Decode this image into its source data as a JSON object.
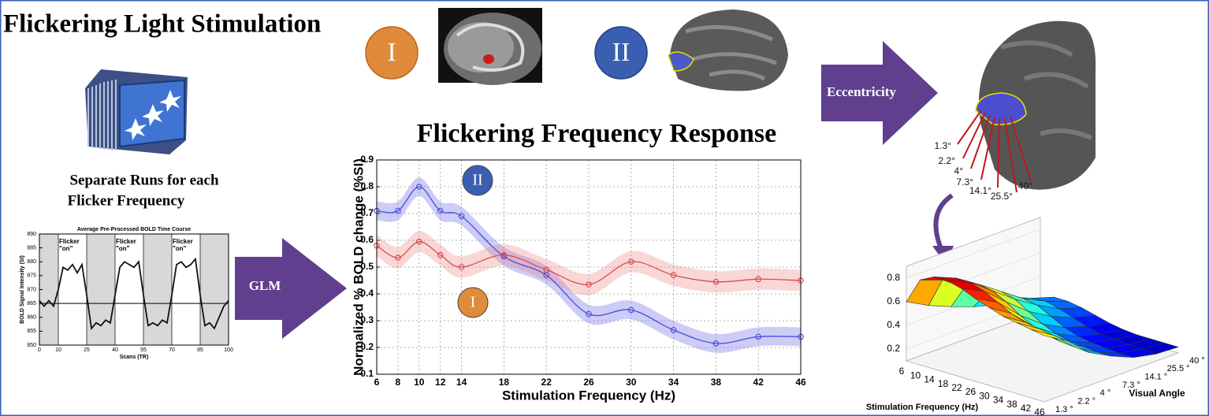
{
  "header": {
    "title": "Flickering Light Stimulation"
  },
  "stimulus_text": [
    "Separate Runs for each",
    "Flicker Frequency"
  ],
  "region_labels": [
    "I",
    "II"
  ],
  "arrows": [
    "GLM",
    "Eccentricity"
  ],
  "eccentricity_labels": [
    "1.3°",
    "2.2°",
    "4°",
    "7.3°",
    "14.1°",
    "25.5°",
    "40°"
  ],
  "chart_data": [
    {
      "type": "line",
      "title": "Flickering Frequency Response",
      "xlabel": "Stimulation Frequency (Hz)",
      "ylabel": "Normalized % BOLD change (%SI)",
      "x": [
        6,
        8,
        10,
        12,
        14,
        18,
        22,
        26,
        30,
        34,
        38,
        42,
        46
      ],
      "series": [
        {
          "name": "II",
          "color": "#4a4fd8",
          "band_color": "rgba(120,120,235,0.38)",
          "values": [
            0.71,
            0.71,
            0.8,
            0.71,
            0.69,
            0.54,
            0.47,
            0.325,
            0.34,
            0.265,
            0.215,
            0.24,
            0.24
          ],
          "errors": [
            0.035,
            0.035,
            0.035,
            0.035,
            0.035,
            0.035,
            0.035,
            0.035,
            0.035,
            0.035,
            0.035,
            0.035,
            0.035
          ]
        },
        {
          "name": "I",
          "color": "#e04a4a",
          "band_color": "rgba(235,130,130,0.32)",
          "values": [
            0.58,
            0.535,
            0.595,
            0.545,
            0.5,
            0.545,
            0.49,
            0.435,
            0.52,
            0.47,
            0.445,
            0.455,
            0.45
          ],
          "errors": [
            0.04,
            0.04,
            0.04,
            0.04,
            0.04,
            0.04,
            0.04,
            0.04,
            0.04,
            0.04,
            0.04,
            0.04,
            0.04
          ]
        }
      ],
      "annotations": [
        "II",
        "I"
      ],
      "xlim": [
        6,
        46
      ],
      "ylim": [
        0.1,
        0.9
      ],
      "xticks": [
        6,
        8,
        10,
        12,
        14,
        18,
        22,
        26,
        30,
        34,
        38,
        42,
        46
      ],
      "yticks": [
        0.1,
        0.2,
        0.3,
        0.4,
        0.5,
        0.6,
        0.7,
        0.8,
        0.9
      ],
      "grid": true
    },
    {
      "type": "line",
      "title": "Average Pre-Processed BOLD Time Course",
      "xlabel": "Scans (TR)",
      "ylabel": "BOLD Signal Intensity (SI)",
      "x": [
        0,
        2.5,
        5,
        7.5,
        10,
        12.5,
        15,
        17.5,
        20,
        22.5,
        25,
        27.5,
        30,
        32.5,
        35,
        37.5,
        40,
        42.5,
        45,
        47.5,
        50,
        52.5,
        55,
        57.5,
        60,
        62.5,
        65,
        67.5,
        70,
        72.5,
        75,
        77.5,
        80,
        82.5,
        85,
        87.5,
        90,
        92.5,
        95,
        97.5,
        100
      ],
      "values": [
        866,
        864,
        866,
        864,
        870,
        878,
        877,
        879,
        876,
        879,
        868,
        856,
        858,
        857,
        859,
        858,
        868,
        878,
        880,
        879,
        878,
        880,
        868,
        857,
        858,
        857,
        859,
        858,
        868,
        879,
        880,
        878,
        879,
        881,
        868,
        857,
        858,
        856,
        860,
        864,
        866
      ],
      "color": "#111111",
      "reference_line": 865,
      "off_blocks": [
        [
          0,
          10
        ],
        [
          25,
          40
        ],
        [
          55,
          70
        ],
        [
          85,
          100
        ]
      ],
      "annotations": [
        [
          "Flicker",
          "\"on\""
        ],
        [
          "Flicker",
          "\"on\""
        ],
        [
          "Flicker",
          "\"on\""
        ]
      ],
      "xlim": [
        0,
        100
      ],
      "ylim": [
        850,
        890
      ],
      "xticks": [
        0,
        10,
        25,
        40,
        55,
        70,
        85,
        100
      ],
      "yticks": [
        850,
        855,
        860,
        865,
        870,
        875,
        880,
        885,
        890
      ]
    },
    {
      "type": "surface",
      "xlabel": "Stimulation Frequency (Hz)",
      "ylabel": "Visual Angle",
      "xticks": [
        6,
        10,
        14,
        18,
        22,
        26,
        30,
        34,
        38,
        42,
        46
      ],
      "yticks": [
        "1.3 °",
        "2.2 °",
        "4 °",
        "7.3 °",
        "14.1 °",
        "25.5 °",
        "40 °"
      ],
      "zticks": [
        0.2,
        0.4,
        0.6,
        0.8
      ],
      "zlim": [
        0.1,
        0.9
      ],
      "values": [
        [
          0.6,
          0.82,
          0.88,
          0.88,
          0.85,
          0.8,
          0.76,
          0.72,
          0.7,
          0.68,
          0.66
        ],
        [
          0.5,
          0.75,
          0.8,
          0.8,
          0.76,
          0.7,
          0.64,
          0.6,
          0.58,
          0.56,
          0.55
        ],
        [
          0.42,
          0.62,
          0.68,
          0.66,
          0.6,
          0.52,
          0.46,
          0.42,
          0.4,
          0.39,
          0.38
        ],
        [
          0.35,
          0.5,
          0.55,
          0.52,
          0.45,
          0.38,
          0.33,
          0.3,
          0.29,
          0.28,
          0.28
        ],
        [
          0.3,
          0.4,
          0.42,
          0.4,
          0.34,
          0.28,
          0.24,
          0.22,
          0.21,
          0.2,
          0.2
        ],
        [
          0.25,
          0.32,
          0.33,
          0.3,
          0.26,
          0.22,
          0.19,
          0.18,
          0.17,
          0.17,
          0.16
        ],
        [
          0.22,
          0.26,
          0.26,
          0.24,
          0.21,
          0.18,
          0.16,
          0.15,
          0.15,
          0.15,
          0.15
        ]
      ]
    }
  ]
}
